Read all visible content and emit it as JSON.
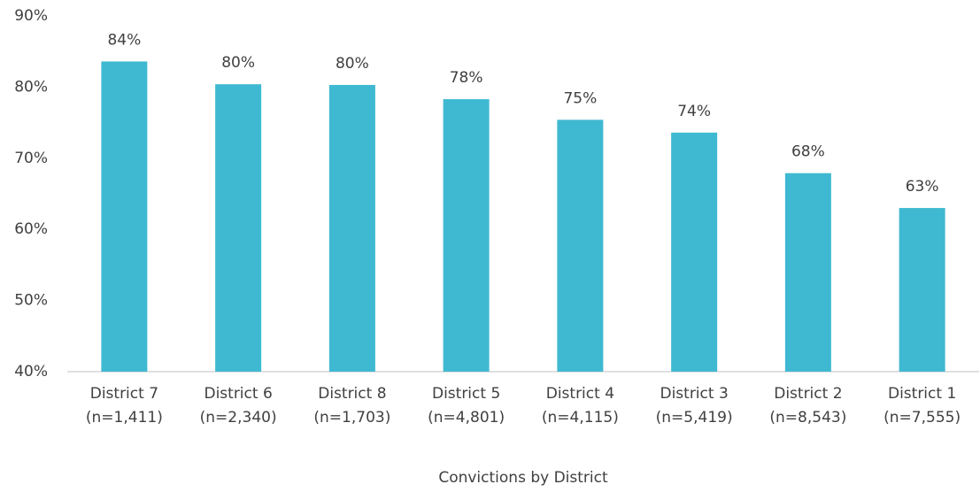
{
  "chart_data": {
    "type": "bar",
    "x_label": "Convictions by District",
    "categories": [
      [
        "District 7",
        "(n=1,411)"
      ],
      [
        "District 6",
        "(n=2,340)"
      ],
      [
        "District 8",
        "(n=1,703)"
      ],
      [
        "District 5",
        "(n=4,801)"
      ],
      [
        "District 4",
        "(n=4,115)"
      ],
      [
        "District 3",
        "(n=5,419)"
      ],
      [
        "District 2",
        "(n=8,543)"
      ],
      [
        "District 1",
        "(n=7,555)"
      ]
    ],
    "values": [
      83.6,
      80.4,
      80.3,
      78.3,
      75.4,
      73.6,
      67.9,
      63.0
    ],
    "value_labels": [
      "84%",
      "80%",
      "80%",
      "78%",
      "75%",
      "74%",
      "68%",
      "63%"
    ],
    "color": "#3fb9d1",
    "ylim": [
      40,
      90
    ],
    "yticks": [
      {
        "value": 40,
        "label": "40%"
      },
      {
        "value": 50,
        "label": "50%"
      },
      {
        "value": 60,
        "label": "60%"
      },
      {
        "value": 70,
        "label": "70%"
      },
      {
        "value": 80,
        "label": "80%"
      },
      {
        "value": 90,
        "label": "90%"
      }
    ],
    "grid": false
  }
}
